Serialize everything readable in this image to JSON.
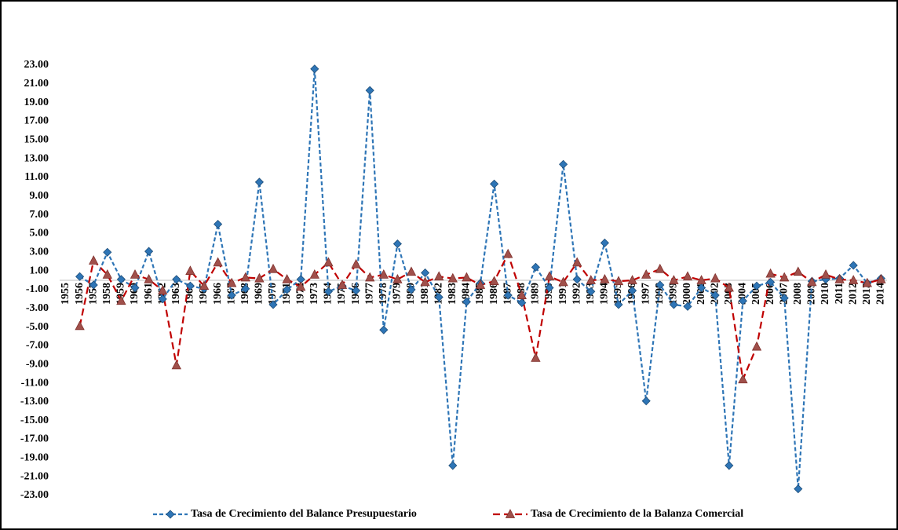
{
  "chart_data": {
    "type": "line",
    "categories": [
      "1955",
      "1956",
      "1957",
      "1958",
      "1959",
      "1960",
      "1961",
      "1962",
      "1963",
      "1964",
      "1965",
      "1966",
      "1967",
      "1968",
      "1969",
      "1970",
      "1971",
      "1972",
      "1973",
      "1974",
      "1975",
      "1976",
      "1977",
      "1978",
      "1979",
      "1980",
      "1981",
      "1982",
      "1983",
      "1984",
      "1985",
      "1986",
      "1987",
      "1988",
      "1989",
      "1990",
      "1991",
      "1992",
      "1993",
      "1994",
      "1995",
      "1996",
      "1997",
      "1998",
      "1999",
      "2000",
      "2001",
      "2002",
      "2003",
      "2004",
      "2005",
      "2006",
      "2007",
      "2008",
      "2009",
      "2010",
      "2011",
      "2012",
      "2013",
      "2014"
    ],
    "series": [
      {
        "name": "Tasa de Crecimiento del Balance Presupuestario",
        "color": "#2e75b6",
        "marker": "diamond",
        "values": [
          null,
          0.4,
          -0.5,
          3.0,
          0.1,
          -0.8,
          3.1,
          -2.0,
          0.1,
          -0.6,
          -0.9,
          6.0,
          -1.6,
          -0.9,
          10.5,
          -2.6,
          -1.0,
          0.1,
          22.6,
          -1.2,
          -0.6,
          -1.1,
          20.3,
          -5.3,
          3.9,
          -1.0,
          0.8,
          -1.8,
          -19.8,
          -2.3,
          -0.3,
          10.3,
          -1.6,
          -2.4,
          1.4,
          -0.8,
          12.4,
          0.1,
          -1.2,
          4.0,
          -2.6,
          -1.1,
          -12.9,
          -0.5,
          -2.6,
          -2.8,
          -0.8,
          -1.6,
          -19.8,
          -2.2,
          -0.6,
          -0.2,
          -1.9,
          -22.3,
          -0.1,
          0.1,
          0.2,
          1.6,
          -0.3,
          0.2
        ]
      },
      {
        "name": "Tasa de Crecimiento de la Balanza Comercial",
        "color": "#c00000",
        "marker": "triangle",
        "values": [
          null,
          -4.9,
          2.1,
          0.6,
          -2.2,
          0.6,
          0.1,
          -1.1,
          -9.1,
          1.0,
          -0.6,
          1.9,
          -0.3,
          0.3,
          0.2,
          1.2,
          0.1,
          -0.7,
          0.6,
          1.9,
          -0.5,
          1.7,
          0.3,
          0.6,
          0.1,
          0.9,
          -0.2,
          0.4,
          0.2,
          0.3,
          -0.5,
          -0.1,
          2.8,
          -1.6,
          -8.3,
          0.4,
          -0.2,
          1.9,
          0.0,
          0.1,
          -0.1,
          0.0,
          0.6,
          1.2,
          0.0,
          0.4,
          0.0,
          0.2,
          -0.8,
          -10.6,
          -7.1,
          0.7,
          0.3,
          0.9,
          -0.2,
          0.6,
          0.1,
          0.0,
          -0.3,
          0.1
        ]
      }
    ],
    "ylim": [
      -23,
      23
    ],
    "yticks": [
      {
        "value": 23,
        "label": "23.00"
      },
      {
        "value": 21,
        "label": "21.00"
      },
      {
        "value": 19,
        "label": "19.00"
      },
      {
        "value": 17,
        "label": "17.00"
      },
      {
        "value": 15,
        "label": "15.00"
      },
      {
        "value": 13,
        "label": "13.00"
      },
      {
        "value": 11,
        "label": "11.00"
      },
      {
        "value": 9,
        "label": "9.00"
      },
      {
        "value": 7,
        "label": "7.00"
      },
      {
        "value": 5,
        "label": "5.00"
      },
      {
        "value": 3,
        "label": "3.00"
      },
      {
        "value": 1,
        "label": "1.00"
      },
      {
        "value": -1,
        "label": "-1.00"
      },
      {
        "value": -3,
        "label": "-3.00"
      },
      {
        "value": -5,
        "label": "-5.00"
      },
      {
        "value": -7,
        "label": "-7.00"
      },
      {
        "value": -9,
        "label": "-9.00"
      },
      {
        "value": -11,
        "label": "-11.00"
      },
      {
        "value": -13,
        "label": "-13.00"
      },
      {
        "value": -15,
        "label": "-15.00"
      },
      {
        "value": -17,
        "label": "-17.00"
      },
      {
        "value": -19,
        "label": "-19.00"
      },
      {
        "value": -21,
        "label": "-21.00"
      },
      {
        "value": -23,
        "label": "-23.00"
      }
    ],
    "grid": false,
    "legend": "bottom"
  }
}
